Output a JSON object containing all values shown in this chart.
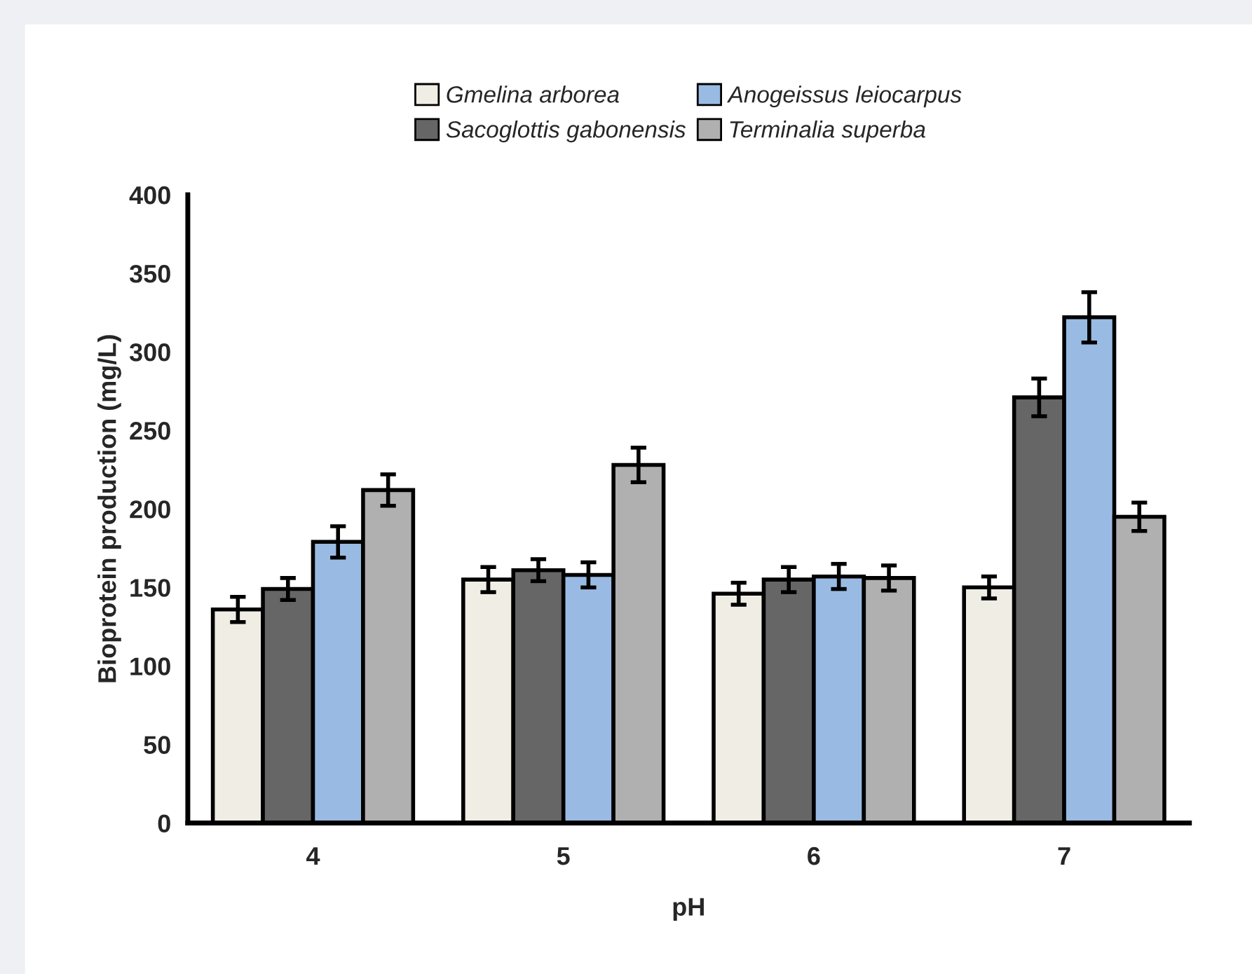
{
  "chart_data": {
    "type": "bar",
    "xlabel": "pH",
    "ylabel": "Bioprotein production (mg/L)",
    "categories": [
      "4",
      "5",
      "6",
      "7"
    ],
    "series": [
      {
        "name": "Gmelina arborea",
        "color": "#f0ede4",
        "values": [
          136,
          155,
          146,
          150
        ],
        "errors": [
          8,
          8,
          7,
          7
        ]
      },
      {
        "name": "Sacoglottis gabonensis",
        "color": "#666666",
        "values": [
          149,
          161,
          155,
          271
        ],
        "errors": [
          7,
          7,
          8,
          12
        ]
      },
      {
        "name": "Anogeissus leiocarpus",
        "color": "#99bbe3",
        "values": [
          179,
          158,
          157,
          322
        ],
        "errors": [
          10,
          8,
          8,
          16
        ]
      },
      {
        "name": "Terminalia superba",
        "color": "#b0b0b0",
        "values": [
          212,
          228,
          156,
          195
        ],
        "errors": [
          10,
          11,
          8,
          9
        ]
      }
    ],
    "ylim": [
      0,
      400
    ],
    "yticks": [
      0,
      50,
      100,
      150,
      200,
      250,
      300,
      350,
      400
    ],
    "grid": false,
    "legend": "top"
  }
}
